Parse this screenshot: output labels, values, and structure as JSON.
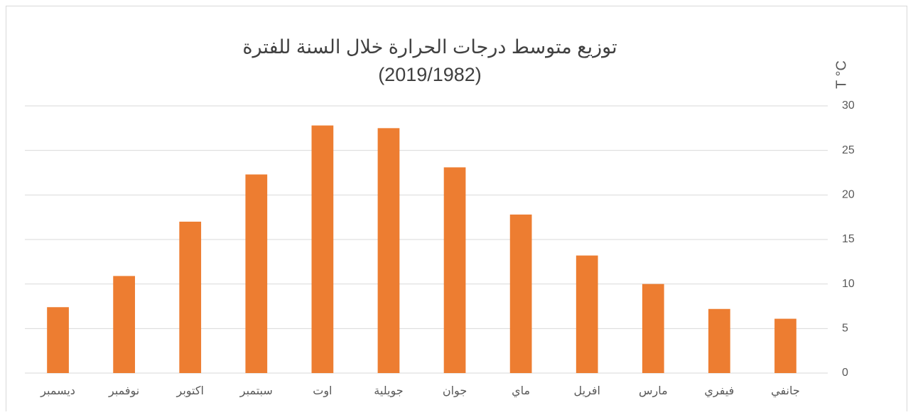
{
  "chart_data": {
    "type": "bar",
    "title": [
      "توزيع متوسط درجات الحرارة خلال السنة للفترة",
      "(2019/1982)"
    ],
    "y_label": "T °C",
    "categories": [
      "جانفي",
      "فيفري",
      "مارس",
      "افريل",
      "ماي",
      "جوان",
      "جويلية",
      "اوت",
      "سبتمبر",
      "اكتوبر",
      "نوفمبر",
      "ديسمبر"
    ],
    "values": [
      6.1,
      7.2,
      10.0,
      13.2,
      17.8,
      23.1,
      27.5,
      27.8,
      22.3,
      17.0,
      10.9,
      7.4
    ],
    "color": "#ed7d31",
    "ylim": [
      0,
      30
    ],
    "yticks": [
      0,
      5,
      10,
      15,
      20,
      25,
      30
    ],
    "grid": true,
    "direction": "rtl",
    "y_axis_side": "right"
  }
}
